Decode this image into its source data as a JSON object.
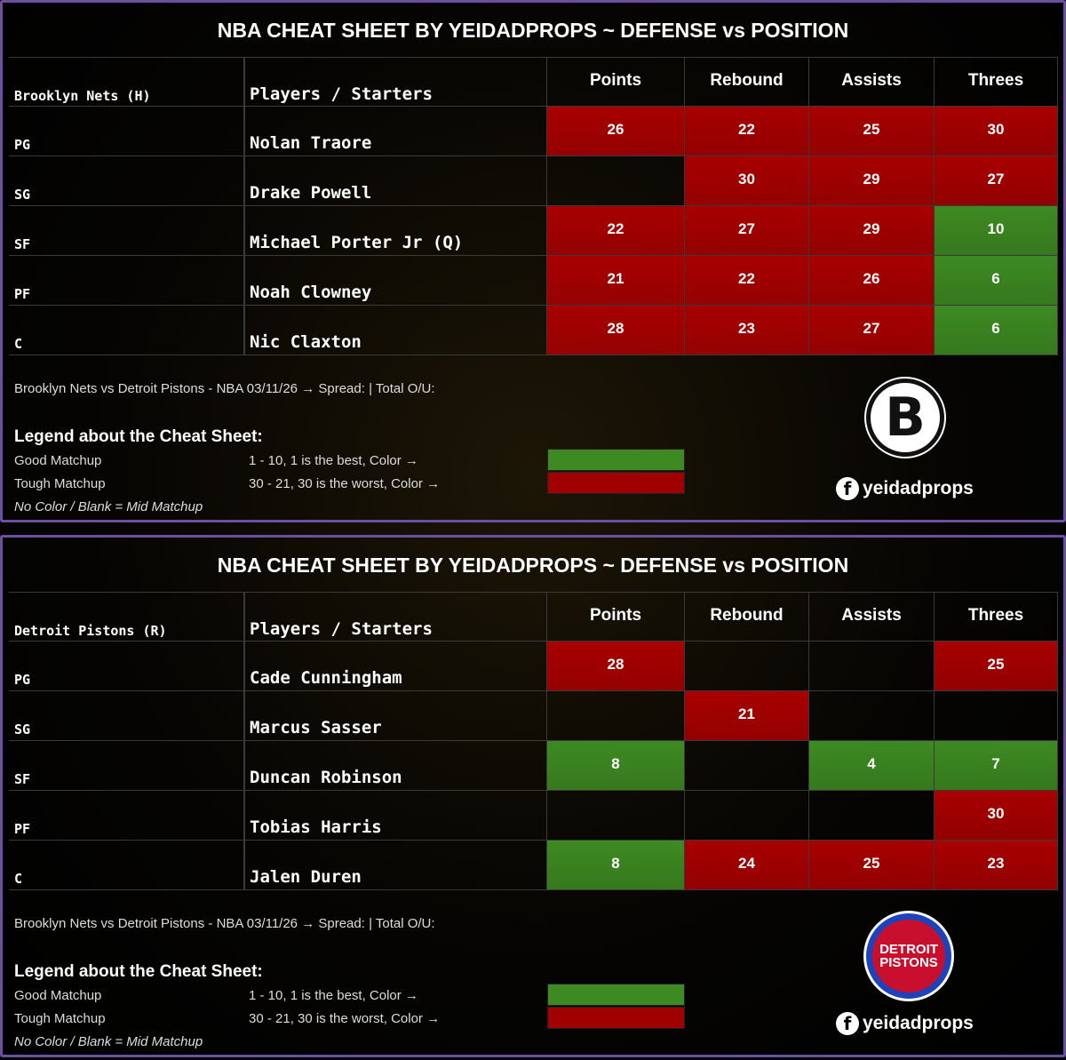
{
  "panels": [
    {
      "title": "NBA CHEAT SHEET BY YEIDADPROPS ~ DEFENSE vs POSITION",
      "team_label": "Brooklyn Nets (H)",
      "players_header": "Players / Starters",
      "stat_headers": [
        "Points",
        "Rebound",
        "Assists",
        "Threes"
      ],
      "rows": [
        {
          "position": "PG",
          "player": "Nolan Traore",
          "stats": [
            26,
            22,
            25,
            30
          ],
          "colors": [
            "#a80000",
            "#a80000",
            "#a80000",
            "#a80000"
          ]
        },
        {
          "position": "SG",
          "player": "Drake Powell",
          "stats": [
            null,
            30,
            29,
            27
          ],
          "colors": [
            null,
            "#a80000",
            "#a80000",
            "#a80000"
          ]
        },
        {
          "position": "SF",
          "player": "Michael Porter Jr (Q)",
          "stats": [
            22,
            27,
            29,
            10
          ],
          "colors": [
            "#a80000",
            "#a80000",
            "#a80000",
            "#3d8a22"
          ]
        },
        {
          "position": "PF",
          "player": "Noah Clowney",
          "stats": [
            21,
            22,
            26,
            6
          ],
          "colors": [
            "#a80000",
            "#a80000",
            "#a80000",
            "#3d8a22"
          ]
        },
        {
          "position": "C",
          "player": "Nic Claxton",
          "stats": [
            28,
            23,
            27,
            6
          ],
          "colors": [
            "#a80000",
            "#a80000",
            "#a80000",
            "#3d8a22"
          ]
        }
      ],
      "matchup": "Brooklyn Nets vs Detroit Pistons - NBA 03/11/26 → Spread: | Total O/U:",
      "legend_title": "Legend about the Cheat Sheet:",
      "legend": [
        {
          "label": "Good Matchup",
          "rule": "1 - 10, 1 is the best, Color →",
          "color": "#3d8a22"
        },
        {
          "label": "Tough Matchup",
          "rule": "30 - 21, 30 is the worst, Color →",
          "color": "#a00000"
        }
      ],
      "legend_note": "No Color / Blank = Mid Matchup",
      "logo_text": "B",
      "social": "yeidadprops"
    },
    {
      "title": "NBA CHEAT SHEET BY YEIDADPROPS ~ DEFENSE vs POSITION",
      "team_label": "Detroit Pistons (R)",
      "players_header": "Players / Starters",
      "stat_headers": [
        "Points",
        "Rebound",
        "Assists",
        "Threes"
      ],
      "rows": [
        {
          "position": "PG",
          "player": "Cade Cunningham",
          "stats": [
            28,
            null,
            null,
            25
          ],
          "colors": [
            "#a80000",
            null,
            null,
            "#a80000"
          ]
        },
        {
          "position": "SG",
          "player": "Marcus Sasser",
          "stats": [
            null,
            21,
            null,
            null
          ],
          "colors": [
            null,
            "#a80000",
            null,
            null
          ]
        },
        {
          "position": "SF",
          "player": "Duncan Robinson",
          "stats": [
            8,
            null,
            4,
            7
          ],
          "colors": [
            "#3d8a22",
            null,
            "#3d8a22",
            "#3d8a22"
          ]
        },
        {
          "position": "PF",
          "player": "Tobias Harris",
          "stats": [
            null,
            null,
            null,
            30
          ],
          "colors": [
            null,
            null,
            null,
            "#a80000"
          ]
        },
        {
          "position": "C",
          "player": "Jalen Duren",
          "stats": [
            8,
            24,
            25,
            23
          ],
          "colors": [
            "#3d8a22",
            "#a80000",
            "#a80000",
            "#a80000"
          ]
        }
      ],
      "matchup": "Brooklyn Nets vs Detroit Pistons - NBA 03/11/26 → Spread: | Total O/U:",
      "legend_title": "Legend about the Cheat Sheet:",
      "legend": [
        {
          "label": "Good Matchup",
          "rule": "1 - 10, 1 is the best, Color →",
          "color": "#3d8a22"
        },
        {
          "label": "Tough Matchup",
          "rule": "30 - 21, 30 is the worst, Color →",
          "color": "#a00000"
        }
      ],
      "legend_note": "No Color / Blank = Mid Matchup",
      "logo_text": "DETROIT PISTONS",
      "social": "yeidadprops"
    }
  ]
}
